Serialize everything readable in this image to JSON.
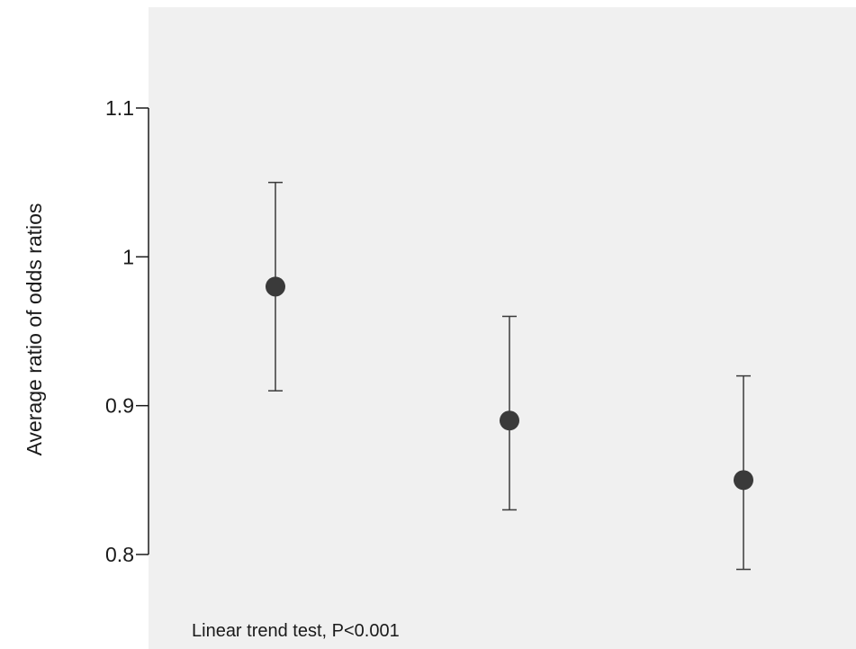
{
  "chart_data": {
    "type": "scatter",
    "title": "",
    "xlabel": "",
    "ylabel": "Average ratio of odds ratios",
    "ylim": [
      0.74,
      1.17
    ],
    "yticks": [
      {
        "value": 0.8,
        "label": "0.8"
      },
      {
        "value": 0.9,
        "label": "0.9"
      },
      {
        "value": 1.0,
        "label": "1"
      },
      {
        "value": 1.1,
        "label": "1.1"
      }
    ],
    "points": [
      {
        "x": 1,
        "y": 0.98,
        "lower": 0.91,
        "upper": 1.05
      },
      {
        "x": 2,
        "y": 0.89,
        "lower": 0.83,
        "upper": 0.96
      },
      {
        "x": 3,
        "y": 0.85,
        "lower": 0.79,
        "upper": 0.92
      }
    ],
    "xlim": [
      0.0,
      3.5
    ],
    "annotation": "Linear trend test, P<0.001",
    "colors": {
      "plot_background": "#f0f0f0",
      "marker": "#3a3a3a",
      "errorbar": "#3a3a3a",
      "axis": "#1a1a1a"
    }
  }
}
